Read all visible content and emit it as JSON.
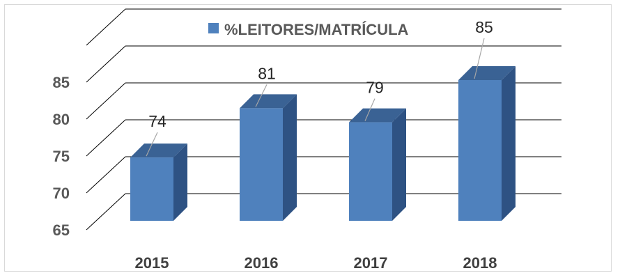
{
  "chart_data": {
    "type": "bar",
    "style": "3d-column",
    "legend": {
      "label": "%LEITORES/MATRÍCULA",
      "position": "top"
    },
    "categories": [
      "2015",
      "2016",
      "2017",
      "2018"
    ],
    "series": [
      {
        "name": "%LEITORES/MATRÍCULA",
        "values": [
          74,
          81,
          79,
          85
        ]
      }
    ],
    "data_labels": [
      "74",
      "81",
      "79",
      "85"
    ],
    "y_ticks": [
      "65",
      "70",
      "75",
      "80",
      "85"
    ],
    "ylim": [
      65,
      88
    ],
    "grid": true,
    "colors": {
      "bar_front": "#4f81bd",
      "bar_side": "#2e5283",
      "bar_top": "#3a6294",
      "grid": "#000000",
      "tick_text": "#595959"
    }
  }
}
